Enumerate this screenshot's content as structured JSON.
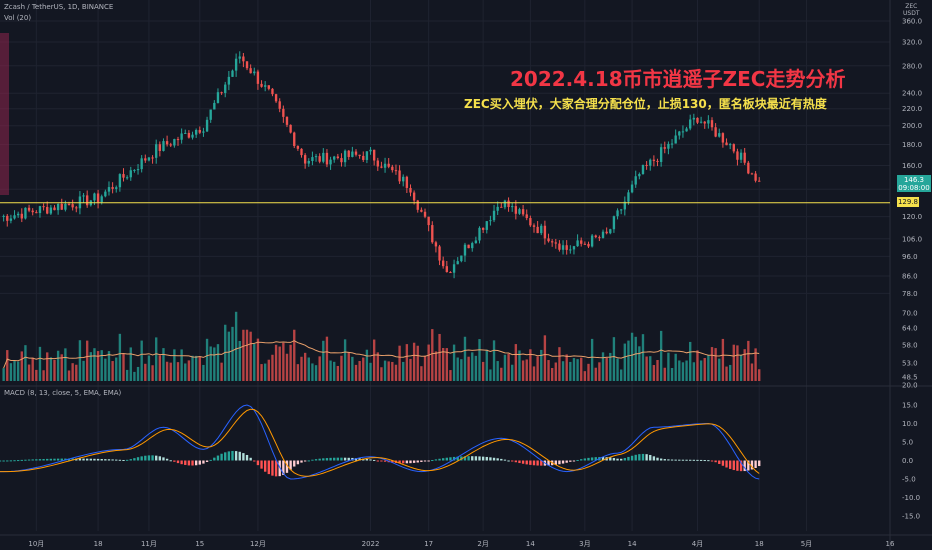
{
  "header": {
    "symbol_line": "Zcash / TetherUS, 1D, BINANCE",
    "volume_label": "Vol (20)",
    "macd_label": "MACD (8, 13, close, 5, EMA, EMA)",
    "unit_top": "ZEC",
    "unit_bottom": "USDT"
  },
  "annotation": {
    "title": "2022.4.18币市逍遥子ZEC走势分析",
    "subtitle": "ZEC买入埋伏，大家合理分配仓位，止损130，匿名板块最近有热度"
  },
  "badges": {
    "last_price": "146.3",
    "countdown": "09:08:00",
    "line_price": "129.8"
  },
  "colors": {
    "background": "#131722",
    "up": "#26a69a",
    "down": "#ef5350",
    "support_line": "#f5e04c",
    "ma_line": "#e9a06b",
    "macd_line": "#2962ff",
    "signal_line": "#ff9800",
    "hist_up_strong": "#26a69a",
    "hist_up_weak": "#b2dfdb",
    "hist_down_strong": "#ff5252",
    "hist_down_weak": "#ffcdd2"
  },
  "chart_data": [
    {
      "type": "candlestick",
      "title": "Zcash / TetherUS, 1D, BINANCE",
      "scale": "log",
      "ylim": [
        70,
        400
      ],
      "y_ticks": [
        "360.0",
        "320.0",
        "280.0",
        "240.0",
        "220.0",
        "200.0",
        "180.0",
        "160.0",
        "140.0",
        "129.8",
        "120.0",
        "106.0",
        "96.0",
        "86.0",
        "78.0"
      ],
      "x_ticks": [
        "10月",
        "18",
        "11月",
        "15",
        "12月",
        "2022",
        "17",
        "2月",
        "14",
        "3月",
        "14",
        "4月",
        "18",
        "5月",
        "16"
      ],
      "x_range": [
        "2021-09-21",
        "2022-05-24"
      ],
      "support_line": 129.8,
      "last_price": 146.3,
      "key_points": [
        {
          "date": "2021-09-22",
          "close": 120
        },
        {
          "date": "2021-10-18",
          "close": 133
        },
        {
          "date": "2021-11-03",
          "close": 175
        },
        {
          "date": "2021-11-16",
          "close": 200
        },
        {
          "date": "2021-11-26",
          "close": 296
        },
        {
          "date": "2021-12-04",
          "close": 240
        },
        {
          "date": "2021-12-14",
          "close": 165
        },
        {
          "date": "2022-01-01",
          "close": 170
        },
        {
          "date": "2022-01-12",
          "close": 142
        },
        {
          "date": "2022-01-22",
          "close": 88
        },
        {
          "date": "2022-02-06",
          "close": 131
        },
        {
          "date": "2022-02-24",
          "close": 100
        },
        {
          "date": "2022-03-07",
          "close": 108
        },
        {
          "date": "2022-03-16",
          "close": 152
        },
        {
          "date": "2022-04-01",
          "close": 210
        },
        {
          "date": "2022-04-10",
          "close": 180
        },
        {
          "date": "2022-04-18",
          "close": 146.3
        }
      ]
    },
    {
      "type": "bar",
      "title": "Vol (20)",
      "y_ticks": [
        "70.0",
        "64.0",
        "58.0",
        "53.0",
        "48.5",
        "20.0"
      ],
      "series": [
        {
          "values_shape": "daily volume, spikes near 2021-11-26 and 2022-03-16"
        }
      ]
    },
    {
      "type": "line",
      "title": "MACD (8, 13, close, 5, EMA, EMA)",
      "ylim": [
        -17,
        17
      ],
      "y_ticks": [
        "15.0",
        "10.0",
        "5.0",
        "0.0",
        "-5.0",
        "-10.0",
        "-15.0"
      ],
      "macd_key_points": [
        {
          "date": "2021-09-22",
          "value": -3
        },
        {
          "date": "2021-10-25",
          "value": 3
        },
        {
          "date": "2021-11-05",
          "value": 9
        },
        {
          "date": "2021-11-16",
          "value": 3
        },
        {
          "date": "2021-11-28",
          "value": 15
        },
        {
          "date": "2021-12-10",
          "value": -5
        },
        {
          "date": "2022-01-01",
          "value": 1
        },
        {
          "date": "2022-01-15",
          "value": -3
        },
        {
          "date": "2022-02-06",
          "value": 6
        },
        {
          "date": "2022-02-24",
          "value": -3
        },
        {
          "date": "2022-03-10",
          "value": 2
        },
        {
          "date": "2022-03-20",
          "value": 9
        },
        {
          "date": "2022-04-04",
          "value": 10
        },
        {
          "date": "2022-04-18",
          "value": -5
        }
      ]
    }
  ]
}
